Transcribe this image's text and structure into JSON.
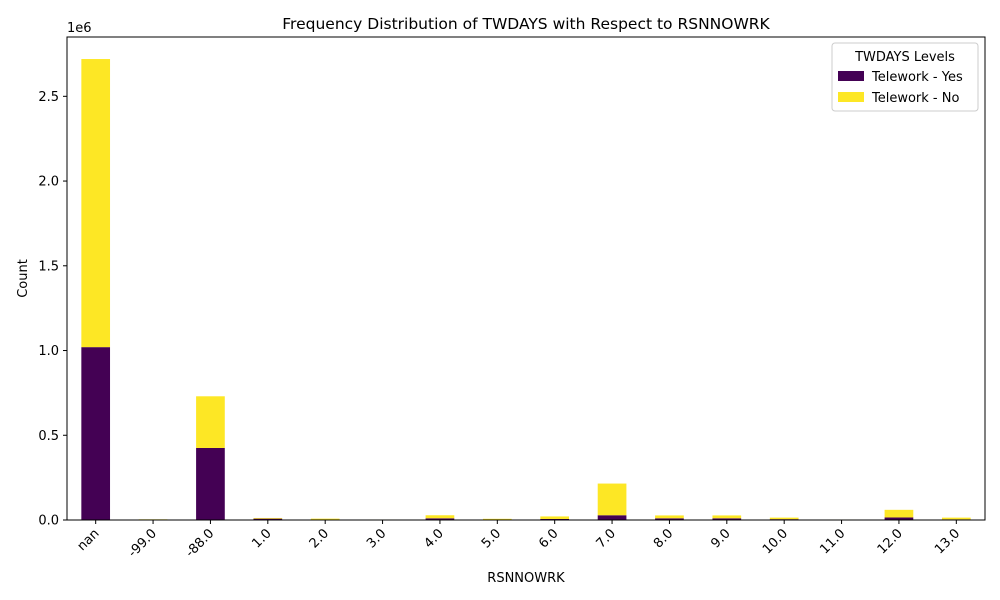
{
  "chart_data": {
    "type": "bar",
    "stacked": true,
    "title": "Frequency Distribution of TWDAYS with Respect to RSNNOWRK",
    "xlabel": "RSNNOWRK",
    "ylabel": "Count",
    "y_offset_label": "1e6",
    "ylim": [
      0,
      2850000
    ],
    "yticks": [
      0,
      500000,
      1000000,
      1500000,
      2000000,
      2500000
    ],
    "ytick_labels": [
      "0.0",
      "0.5",
      "1.0",
      "1.5",
      "2.0",
      "2.5"
    ],
    "categories": [
      "nan",
      "-99.0",
      "-88.0",
      "1.0",
      "2.0",
      "3.0",
      "4.0",
      "5.0",
      "6.0",
      "7.0",
      "8.0",
      "9.0",
      "10.0",
      "11.0",
      "12.0",
      "13.0"
    ],
    "series": [
      {
        "name": "Telework - Yes",
        "color": "#440154",
        "values": [
          1020000,
          2000,
          425000,
          8000,
          3000,
          2000,
          10000,
          3000,
          6000,
          28000,
          10000,
          10000,
          5000,
          2000,
          15000,
          4000
        ]
      },
      {
        "name": "Telework - No",
        "color": "#fde725",
        "values": [
          1700000,
          2000,
          305000,
          4000,
          5000,
          1000,
          18000,
          4000,
          15000,
          187000,
          17000,
          17000,
          9000,
          1000,
          45000,
          10000
        ]
      }
    ],
    "legend": {
      "title": "TWDAYS Levels",
      "position": "top-right"
    },
    "grid": false
  }
}
